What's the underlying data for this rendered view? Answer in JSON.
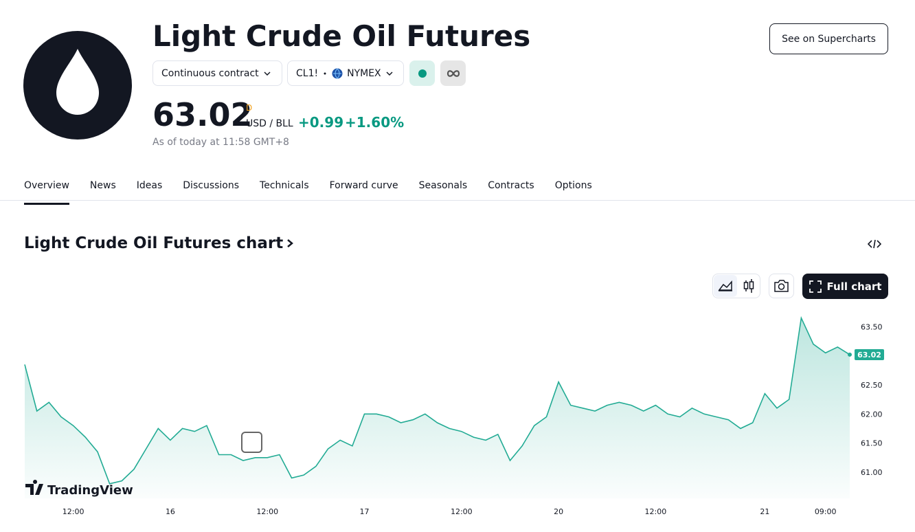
{
  "header": {
    "title": "Light Crude Oil Futures",
    "contract": "Continuous contract",
    "symbol": "CL1!",
    "exchange": "NYMEX",
    "price": "63.02",
    "price_period": "D",
    "unit": "USD / BLL",
    "change": "+0.99",
    "change_percent": "+1.60%",
    "as_of": "As of today at 11:58 GMT+8",
    "supercharts_button": "See on Supercharts"
  },
  "tabs": [
    "Overview",
    "News",
    "Ideas",
    "Discussions",
    "Technicals",
    "Forward curve",
    "Seasonals",
    "Contracts",
    "Options"
  ],
  "chart_section": {
    "heading": "Light Crude Oil Futures chart",
    "full_chart_button": "Full chart",
    "brand": "TradingView"
  },
  "chart_data": {
    "type": "line",
    "color": "#22ab94",
    "categories": [
      null,
      null,
      null,
      null,
      "12:00",
      null,
      null,
      null,
      null,
      null,
      null,
      null,
      "16",
      null,
      null,
      null,
      null,
      null,
      null,
      null,
      "12:00",
      null,
      null,
      null,
      null,
      null,
      null,
      null,
      "17",
      null,
      null,
      null,
      null,
      null,
      null,
      null,
      "12:00",
      null,
      null,
      null,
      null,
      null,
      null,
      null,
      "20",
      null,
      null,
      null,
      null,
      null,
      null,
      null,
      "12:00",
      null,
      null,
      null,
      null,
      null,
      null,
      null,
      null,
      "21",
      null,
      null,
      null,
      null,
      "09:00",
      null,
      null
    ],
    "values": [
      62.85,
      62.05,
      62.2,
      61.95,
      61.8,
      61.6,
      61.35,
      60.8,
      60.85,
      61.05,
      61.4,
      61.75,
      61.55,
      61.75,
      61.7,
      61.8,
      61.3,
      61.3,
      61.2,
      61.25,
      61.25,
      61.3,
      60.9,
      60.95,
      61.1,
      61.4,
      61.55,
      61.45,
      62.0,
      62.0,
      61.95,
      61.85,
      61.9,
      62.0,
      61.85,
      61.75,
      61.7,
      61.6,
      61.55,
      61.65,
      61.2,
      61.45,
      61.8,
      61.95,
      62.55,
      62.15,
      62.1,
      62.05,
      62.15,
      62.2,
      62.15,
      62.05,
      62.15,
      62.0,
      61.95,
      62.1,
      62.0,
      61.95,
      61.9,
      61.75,
      61.85,
      62.35,
      62.1,
      62.25,
      63.65,
      63.2,
      63.05,
      63.15,
      63.02
    ],
    "ylim": [
      60.55,
      63.74
    ],
    "yticks": [
      {
        "value": 61,
        "label": "61.00"
      },
      {
        "value": 61.5,
        "label": "61.50"
      },
      {
        "value": 62,
        "label": "62.00"
      },
      {
        "value": 62.5,
        "label": "62.50"
      },
      {
        "value": 63,
        "label": "63.00"
      },
      {
        "value": 63.5,
        "label": "63.50"
      }
    ]
  }
}
